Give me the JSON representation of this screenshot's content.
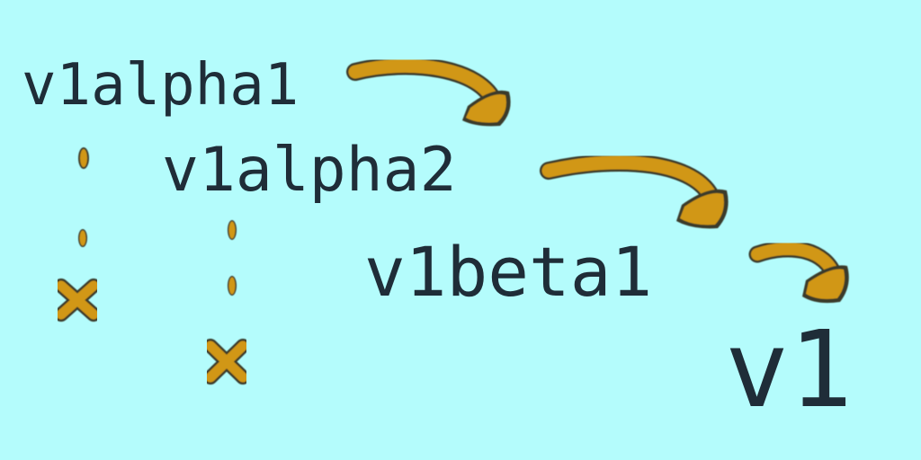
{
  "versions": {
    "alpha1": "v1alpha1",
    "alpha2": "v1alpha2",
    "beta1": "v1beta1",
    "final": "v1"
  },
  "marks": {
    "promotion_arrows": 3,
    "deprecated_marker": "x-mark"
  },
  "colors": {
    "background": "#b4fcfc",
    "text": "#1f2d38",
    "accent": "#d19712",
    "accent_outline": "#3a3a2a"
  }
}
